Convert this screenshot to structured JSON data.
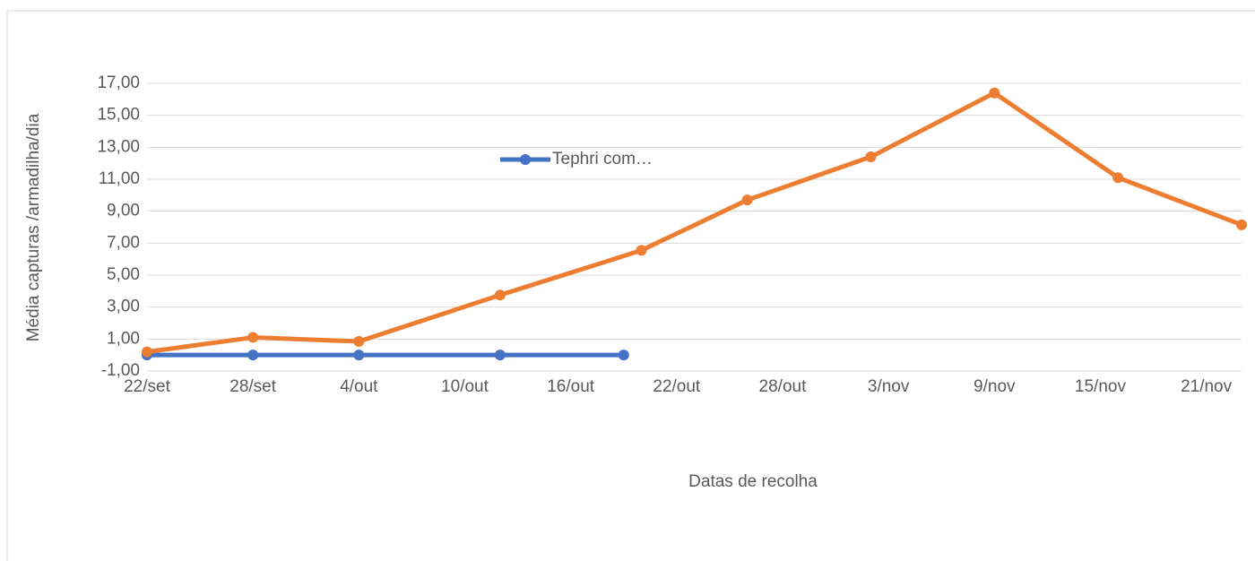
{
  "chart_data": {
    "type": "line",
    "x_label": "Datas de recolha",
    "y_label": "Média capturas /armadilha/dia",
    "xlim": [
      "22/set",
      "23/nov"
    ],
    "xticks": [
      "22/set",
      "28/set",
      "4/out",
      "10/out",
      "16/out",
      "22/out",
      "28/out",
      "3/nov",
      "9/nov",
      "15/nov",
      "21/nov"
    ],
    "ylim": [
      -1,
      17
    ],
    "yticks": [
      {
        "value": -1,
        "label": "-1,00"
      },
      {
        "value": 1,
        "label": "1,00"
      },
      {
        "value": 3,
        "label": "3,00"
      },
      {
        "value": 5,
        "label": "5,00"
      },
      {
        "value": 7,
        "label": "7,00"
      },
      {
        "value": 9,
        "label": "9,00"
      },
      {
        "value": 11,
        "label": "11,00"
      },
      {
        "value": 13,
        "label": "13,00"
      },
      {
        "value": 15,
        "label": "15,00"
      },
      {
        "value": 17,
        "label": "17,00"
      }
    ],
    "grid": true,
    "series": [
      {
        "name": "Tephri com…",
        "color": "#4472c4",
        "x": [
          "22/set",
          "28/set",
          "4/out",
          "12/out",
          "19/out"
        ],
        "values": [
          0,
          0,
          0,
          0,
          0
        ]
      },
      {
        "color": "#ed7d31",
        "x": [
          "22/set",
          "28/set",
          "4/out",
          "12/out",
          "20/out",
          "26/out",
          "2/nov",
          "9/nov",
          "16/nov",
          "23/nov"
        ],
        "values": [
          0.2,
          1.1,
          0.85,
          3.75,
          6.55,
          9.7,
          12.4,
          16.4,
          11.1,
          8.15
        ]
      }
    ]
  }
}
